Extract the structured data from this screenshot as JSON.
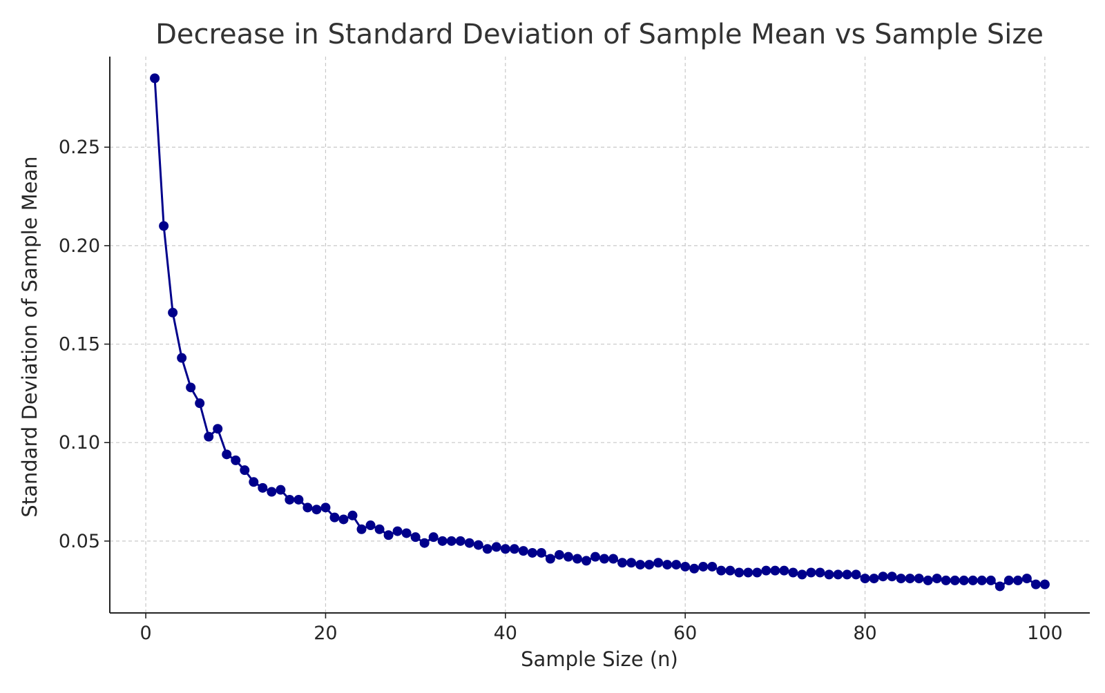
{
  "chart_data": {
    "type": "line",
    "title": "Decrease in Standard Deviation of Sample Mean vs Sample Size",
    "xlabel": "Sample Size (n)",
    "ylabel": "Standard Deviation of Sample Mean",
    "xlim": [
      -4,
      105
    ],
    "ylim": [
      0.0135,
      0.296
    ],
    "xticks": [
      0,
      20,
      40,
      60,
      80,
      100
    ],
    "xtick_labels": [
      "0",
      "20",
      "40",
      "60",
      "80",
      "100"
    ],
    "yticks": [
      0.05,
      0.1,
      0.15,
      0.2,
      0.25
    ],
    "ytick_labels": [
      "0.05",
      "0.10",
      "0.15",
      "0.20",
      "0.25"
    ],
    "grid": true,
    "color": "#00008b",
    "marker": "circle",
    "series": [
      {
        "x": [
          1,
          2,
          3,
          4,
          5,
          6,
          7,
          8,
          9,
          10,
          11,
          12,
          13,
          14,
          15,
          16,
          17,
          18,
          19,
          20,
          21,
          22,
          23,
          24,
          25,
          26,
          27,
          28,
          29,
          30,
          31,
          32,
          33,
          34,
          35,
          36,
          37,
          38,
          39,
          40,
          41,
          42,
          43,
          44,
          45,
          46,
          47,
          48,
          49,
          50,
          51,
          52,
          53,
          54,
          55,
          56,
          57,
          58,
          59,
          60,
          61,
          62,
          63,
          64,
          65,
          66,
          67,
          68,
          69,
          70,
          71,
          72,
          73,
          74,
          75,
          76,
          77,
          78,
          79,
          80,
          81,
          82,
          83,
          84,
          85,
          86,
          87,
          88,
          89,
          90,
          91,
          92,
          93,
          94,
          95,
          96,
          97,
          98,
          99,
          100
        ],
        "y": [
          0.285,
          0.21,
          0.166,
          0.143,
          0.128,
          0.12,
          0.103,
          0.107,
          0.094,
          0.091,
          0.086,
          0.08,
          0.077,
          0.075,
          0.076,
          0.071,
          0.071,
          0.067,
          0.066,
          0.067,
          0.062,
          0.061,
          0.063,
          0.056,
          0.058,
          0.056,
          0.053,
          0.055,
          0.054,
          0.052,
          0.049,
          0.052,
          0.05,
          0.05,
          0.05,
          0.049,
          0.048,
          0.046,
          0.047,
          0.046,
          0.046,
          0.045,
          0.044,
          0.044,
          0.041,
          0.043,
          0.042,
          0.041,
          0.04,
          0.042,
          0.041,
          0.041,
          0.039,
          0.039,
          0.038,
          0.038,
          0.039,
          0.038,
          0.038,
          0.037,
          0.036,
          0.037,
          0.037,
          0.035,
          0.035,
          0.034,
          0.034,
          0.034,
          0.035,
          0.035,
          0.035,
          0.034,
          0.033,
          0.034,
          0.034,
          0.033,
          0.033,
          0.033,
          0.033,
          0.031,
          0.031,
          0.032,
          0.032,
          0.031,
          0.031,
          0.031,
          0.03,
          0.031,
          0.03,
          0.03,
          0.03,
          0.03,
          0.03,
          0.03,
          0.027,
          0.03,
          0.03,
          0.031,
          0.028,
          0.028
        ]
      }
    ]
  }
}
